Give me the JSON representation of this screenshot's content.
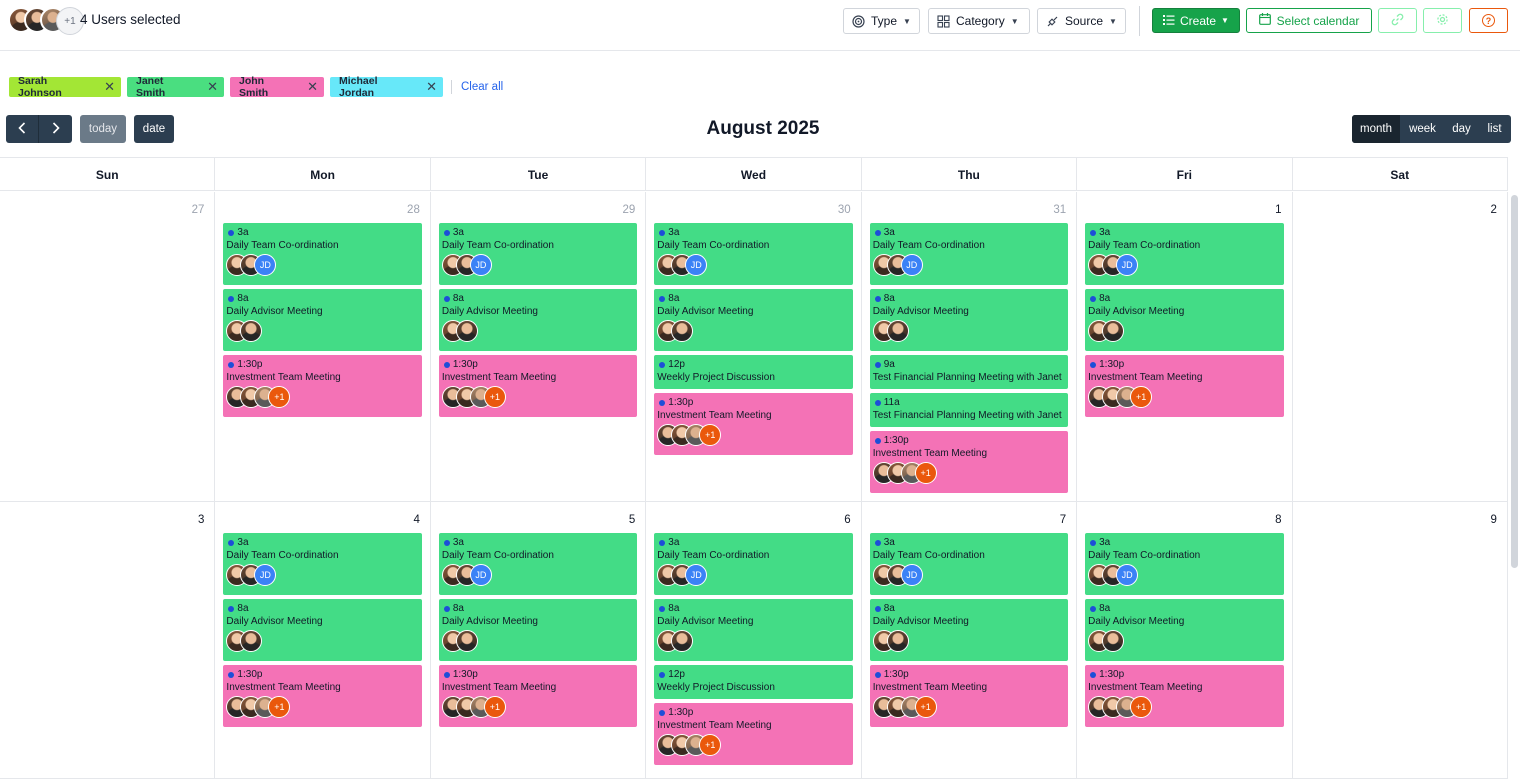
{
  "header": {
    "users_selected": "4 Users selected",
    "more_users": "+1",
    "filters": [
      {
        "label": "Type",
        "icon": "spiral-icon"
      },
      {
        "label": "Category",
        "icon": "grid-icon"
      },
      {
        "label": "Source",
        "icon": "plug-icon"
      }
    ],
    "create_label": "Create",
    "select_calendar_label": "Select calendar",
    "colors": {
      "primary": "#16a34a",
      "help": "#ea580c"
    }
  },
  "chips": {
    "items": [
      {
        "label": "Sarah Johnson",
        "color": "#a3e635"
      },
      {
        "label": "Janet Smith",
        "color": "#4ade80"
      },
      {
        "label": "John Smith",
        "color": "#f472b6"
      },
      {
        "label": "Michael Jordan",
        "color": "#67e8f9"
      }
    ],
    "clear_all": "Clear all"
  },
  "toolbar": {
    "prev": "‹",
    "next": "›",
    "today": "today",
    "date": "date",
    "title": "August 2025",
    "views": [
      "month",
      "week",
      "day",
      "list"
    ],
    "active_view": "month"
  },
  "calendar": {
    "days_of_week": [
      "Sun",
      "Mon",
      "Tue",
      "Wed",
      "Thu",
      "Fri",
      "Sat"
    ],
    "event_colors": {
      "green": "#43dc86",
      "pink": "#f472b6"
    },
    "weeks": [
      {
        "days": [
          {
            "num": "27",
            "other": true,
            "events": []
          },
          {
            "num": "28",
            "other": true,
            "events": [
              {
                "time": "3a",
                "title": "Daily Team Co-ordination",
                "color": "green",
                "avatars": [
                  "f1",
                  "f2",
                  "JD"
                ]
              },
              {
                "time": "8a",
                "title": "Daily Advisor Meeting",
                "color": "green",
                "avatars": [
                  "f1",
                  "f2"
                ]
              },
              {
                "time": "1:30p",
                "title": "Investment Team Meeting",
                "color": "pink",
                "avatars": [
                  "f2",
                  "f1",
                  "f3",
                  "+1"
                ]
              }
            ]
          },
          {
            "num": "29",
            "other": true,
            "events": [
              {
                "time": "3a",
                "title": "Daily Team Co-ordination",
                "color": "green",
                "avatars": [
                  "f1",
                  "f2",
                  "JD"
                ]
              },
              {
                "time": "8a",
                "title": "Daily Advisor Meeting",
                "color": "green",
                "avatars": [
                  "f1",
                  "f2"
                ]
              },
              {
                "time": "1:30p",
                "title": "Investment Team Meeting",
                "color": "pink",
                "avatars": [
                  "f2",
                  "f1",
                  "f3",
                  "+1"
                ]
              }
            ]
          },
          {
            "num": "30",
            "other": true,
            "events": [
              {
                "time": "3a",
                "title": "Daily Team Co-ordination",
                "color": "green",
                "avatars": [
                  "f1",
                  "f2",
                  "JD"
                ]
              },
              {
                "time": "8a",
                "title": "Daily Advisor Meeting",
                "color": "green",
                "avatars": [
                  "f1",
                  "f2"
                ]
              },
              {
                "time": "12p",
                "title": "Weekly Project Discussion",
                "color": "green",
                "short": true,
                "avatars": []
              },
              {
                "time": "1:30p",
                "title": "Investment Team Meeting",
                "color": "pink",
                "avatars": [
                  "f2",
                  "f1",
                  "f3",
                  "+1"
                ]
              }
            ]
          },
          {
            "num": "31",
            "other": true,
            "events": [
              {
                "time": "3a",
                "title": "Daily Team Co-ordination",
                "color": "green",
                "avatars": [
                  "f1",
                  "f2",
                  "JD"
                ]
              },
              {
                "time": "8a",
                "title": "Daily Advisor Meeting",
                "color": "green",
                "avatars": [
                  "f1",
                  "f2"
                ]
              },
              {
                "time": "9a",
                "title": "Test Financial Planning Meeting with Janet",
                "color": "green",
                "short": true,
                "avatars": []
              },
              {
                "time": "11a",
                "title": "Test Financial Planning Meeting with Janet",
                "color": "green",
                "short": true,
                "avatars": []
              },
              {
                "time": "1:30p",
                "title": "Investment Team Meeting",
                "color": "pink",
                "avatars": [
                  "f2",
                  "f1",
                  "f3",
                  "+1"
                ]
              }
            ]
          },
          {
            "num": "1",
            "other": false,
            "events": [
              {
                "time": "3a",
                "title": "Daily Team Co-ordination",
                "color": "green",
                "avatars": [
                  "f1",
                  "f2",
                  "JD"
                ]
              },
              {
                "time": "8a",
                "title": "Daily Advisor Meeting",
                "color": "green",
                "avatars": [
                  "f1",
                  "f2"
                ]
              },
              {
                "time": "1:30p",
                "title": "Investment Team Meeting",
                "color": "pink",
                "avatars": [
                  "f2",
                  "f1",
                  "f3",
                  "+1"
                ]
              }
            ]
          },
          {
            "num": "2",
            "other": false,
            "events": []
          }
        ]
      },
      {
        "days": [
          {
            "num": "3",
            "other": false,
            "events": []
          },
          {
            "num": "4",
            "other": false,
            "events": [
              {
                "time": "3a",
                "title": "Daily Team Co-ordination",
                "color": "green",
                "avatars": [
                  "f1",
                  "f2",
                  "JD"
                ]
              },
              {
                "time": "8a",
                "title": "Daily Advisor Meeting",
                "color": "green",
                "avatars": [
                  "f1",
                  "f2"
                ]
              },
              {
                "time": "1:30p",
                "title": "Investment Team Meeting",
                "color": "pink",
                "avatars": [
                  "f2",
                  "f1",
                  "f3",
                  "+1"
                ]
              }
            ]
          },
          {
            "num": "5",
            "other": false,
            "events": [
              {
                "time": "3a",
                "title": "Daily Team Co-ordination",
                "color": "green",
                "avatars": [
                  "f1",
                  "f2",
                  "JD"
                ]
              },
              {
                "time": "8a",
                "title": "Daily Advisor Meeting",
                "color": "green",
                "avatars": [
                  "f1",
                  "f2"
                ]
              },
              {
                "time": "1:30p",
                "title": "Investment Team Meeting",
                "color": "pink",
                "avatars": [
                  "f2",
                  "f1",
                  "f3",
                  "+1"
                ]
              }
            ]
          },
          {
            "num": "6",
            "other": false,
            "events": [
              {
                "time": "3a",
                "title": "Daily Team Co-ordination",
                "color": "green",
                "avatars": [
                  "f1",
                  "f2",
                  "JD"
                ]
              },
              {
                "time": "8a",
                "title": "Daily Advisor Meeting",
                "color": "green",
                "avatars": [
                  "f1",
                  "f2"
                ]
              },
              {
                "time": "12p",
                "title": "Weekly Project Discussion",
                "color": "green",
                "short": true,
                "avatars": []
              },
              {
                "time": "1:30p",
                "title": "Investment Team Meeting",
                "color": "pink",
                "avatars": [
                  "f2",
                  "f1",
                  "f3",
                  "+1"
                ]
              }
            ]
          },
          {
            "num": "7",
            "other": false,
            "events": [
              {
                "time": "3a",
                "title": "Daily Team Co-ordination",
                "color": "green",
                "avatars": [
                  "f1",
                  "f2",
                  "JD"
                ]
              },
              {
                "time": "8a",
                "title": "Daily Advisor Meeting",
                "color": "green",
                "avatars": [
                  "f1",
                  "f2"
                ]
              },
              {
                "time": "1:30p",
                "title": "Investment Team Meeting",
                "color": "pink",
                "avatars": [
                  "f2",
                  "f1",
                  "f3",
                  "+1"
                ]
              }
            ]
          },
          {
            "num": "8",
            "other": false,
            "events": [
              {
                "time": "3a",
                "title": "Daily Team Co-ordination",
                "color": "green",
                "avatars": [
                  "f1",
                  "f2",
                  "JD"
                ]
              },
              {
                "time": "8a",
                "title": "Daily Advisor Meeting",
                "color": "green",
                "avatars": [
                  "f1",
                  "f2"
                ]
              },
              {
                "time": "1:30p",
                "title": "Investment Team Meeting",
                "color": "pink",
                "avatars": [
                  "f2",
                  "f1",
                  "f3",
                  "+1"
                ]
              }
            ]
          },
          {
            "num": "9",
            "other": false,
            "events": []
          }
        ]
      }
    ]
  }
}
